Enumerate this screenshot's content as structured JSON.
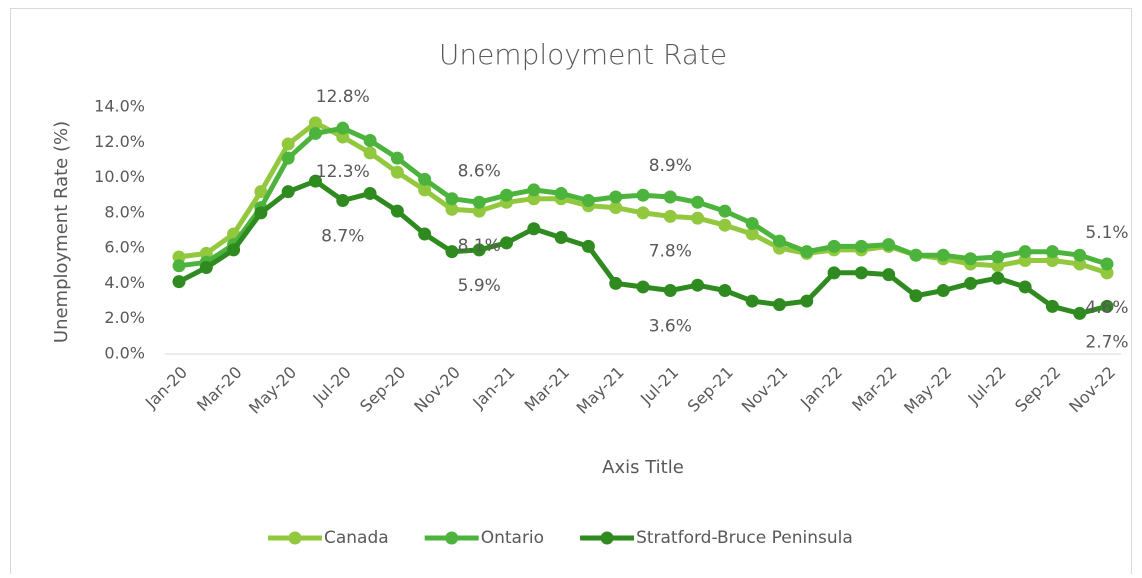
{
  "chart_data": {
    "type": "line",
    "title": "Unemployment Rate",
    "x_label": "Axis Title",
    "y_label": "Unemployment Rate (%)",
    "categories": [
      "Jan-20",
      null,
      "Mar-20",
      null,
      "May-20",
      null,
      "Jul-20",
      null,
      "Sep-20",
      null,
      "Nov-20",
      null,
      "Jan-21",
      null,
      "Mar-21",
      null,
      "May-21",
      null,
      "Jul-21",
      null,
      "Sep-21",
      null,
      "Nov-21",
      null,
      "Jan-22",
      null,
      "Mar-22",
      null,
      "May-22",
      null,
      "Jul-22",
      null,
      "Sep-22",
      null,
      "Nov-22"
    ],
    "ylim": [
      0,
      14
    ],
    "yticks": [
      {
        "value": 0,
        "label": "0.0%"
      },
      {
        "value": 2,
        "label": "2.0%"
      },
      {
        "value": 4,
        "label": "4.0%"
      },
      {
        "value": 6,
        "label": "6.0%"
      },
      {
        "value": 8,
        "label": "8.0%"
      },
      {
        "value": 10,
        "label": "10.0%"
      },
      {
        "value": 12,
        "label": "12.0%"
      },
      {
        "value": 14,
        "label": "14.0%"
      }
    ],
    "legend": "bottom",
    "series": [
      {
        "name": "Canada",
        "color": "#92c83e",
        "values": [
          5.5,
          5.7,
          6.8,
          9.2,
          11.9,
          13.1,
          12.3,
          11.4,
          10.3,
          9.3,
          8.2,
          8.1,
          8.6,
          8.8,
          8.8,
          8.4,
          8.3,
          8.0,
          7.8,
          7.7,
          7.3,
          6.8,
          6.0,
          5.7,
          5.9,
          5.9,
          6.1,
          5.6,
          5.4,
          5.1,
          5.0,
          5.3,
          5.3,
          5.1,
          4.6
        ],
        "value_labels": [
          null,
          null,
          null,
          null,
          null,
          null,
          "12.3%",
          null,
          null,
          null,
          null,
          "8.1%",
          null,
          null,
          null,
          null,
          null,
          null,
          "7.8%",
          null,
          null,
          null,
          null,
          null,
          null,
          null,
          null,
          null,
          null,
          null,
          null,
          null,
          null,
          null,
          "4.6%"
        ]
      },
      {
        "name": "Ontario",
        "color": "#4cb33d",
        "values": [
          5.0,
          5.2,
          6.2,
          8.3,
          11.1,
          12.5,
          12.8,
          12.1,
          11.1,
          9.9,
          8.8,
          8.6,
          9.0,
          9.3,
          9.1,
          8.7,
          8.9,
          9.0,
          8.9,
          8.6,
          8.1,
          7.4,
          6.4,
          5.8,
          6.1,
          6.1,
          6.2,
          5.6,
          5.6,
          5.4,
          5.5,
          5.8,
          5.8,
          5.6,
          5.1
        ],
        "value_labels": [
          null,
          null,
          null,
          null,
          null,
          null,
          "12.8%",
          null,
          null,
          null,
          null,
          "8.6%",
          null,
          null,
          null,
          null,
          null,
          null,
          "8.9%",
          null,
          null,
          null,
          null,
          null,
          null,
          null,
          null,
          null,
          null,
          null,
          null,
          null,
          null,
          null,
          "5.1%"
        ]
      },
      {
        "name": "Stratford-Bruce Peninsula",
        "color": "#2f8a1f",
        "values": [
          4.1,
          4.9,
          5.9,
          8.0,
          9.2,
          9.8,
          8.7,
          9.1,
          8.1,
          6.8,
          5.8,
          5.9,
          6.3,
          7.1,
          6.6,
          6.1,
          4.0,
          3.8,
          3.6,
          3.9,
          3.6,
          3.0,
          2.8,
          3.0,
          4.6,
          4.6,
          4.5,
          3.3,
          3.6,
          4.0,
          4.3,
          3.8,
          2.7,
          2.3,
          2.7
        ],
        "value_labels": [
          null,
          null,
          null,
          null,
          null,
          null,
          "8.7%",
          null,
          null,
          null,
          null,
          "5.9%",
          null,
          null,
          null,
          null,
          null,
          null,
          "3.6%",
          null,
          null,
          null,
          null,
          null,
          null,
          null,
          null,
          null,
          null,
          null,
          null,
          null,
          null,
          null,
          "2.7%"
        ]
      }
    ]
  }
}
